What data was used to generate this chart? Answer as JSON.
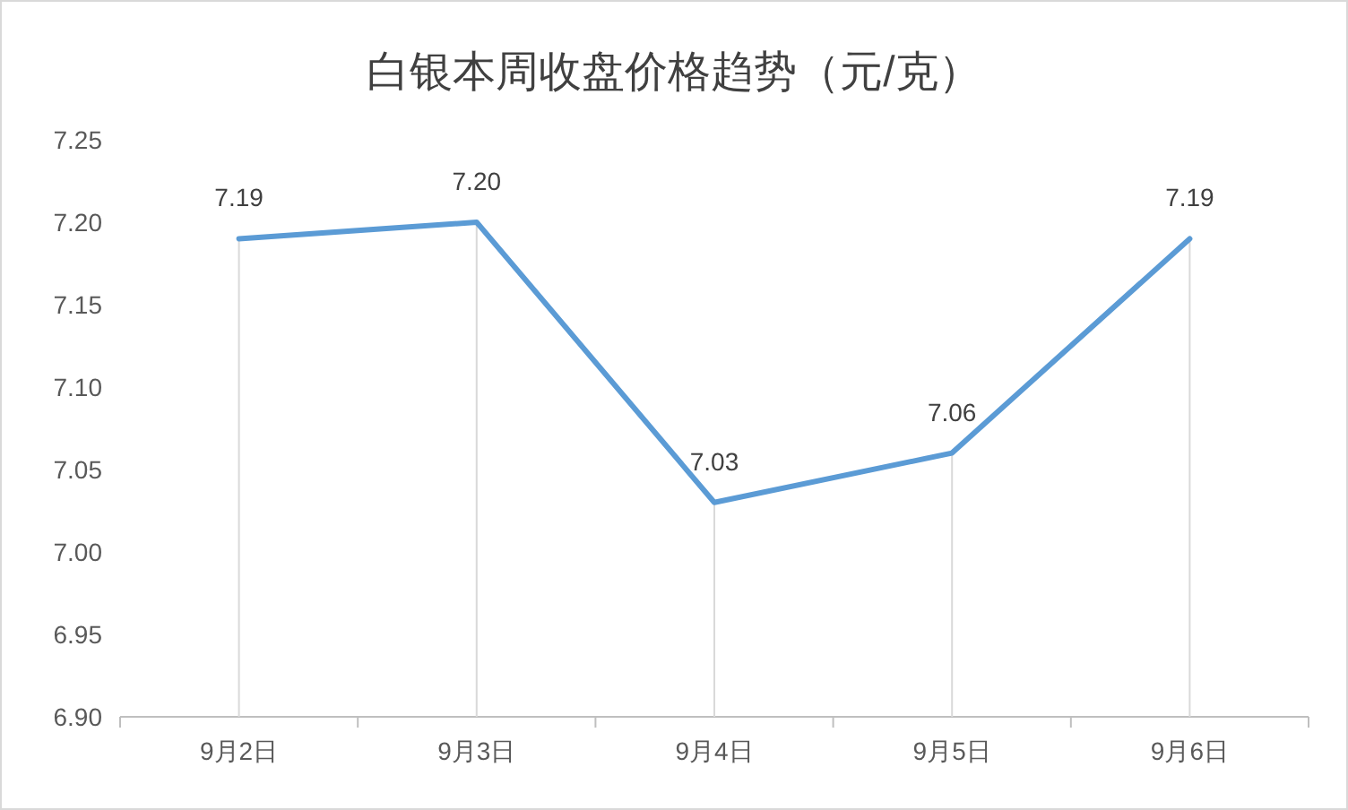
{
  "chart_data": {
    "type": "line",
    "title": "白银本周收盘价格趋势（元/克）",
    "categories": [
      "9月2日",
      "9月3日",
      "9月4日",
      "9月5日",
      "9月6日"
    ],
    "series": [
      {
        "color": "#5b9bd5",
        "values": [
          7.19,
          7.2,
          7.03,
          7.06,
          7.19
        ],
        "value_labels": [
          "7.19",
          "7.20",
          "7.03",
          "7.06",
          "7.19"
        ]
      }
    ],
    "ylim": [
      6.9,
      7.25
    ],
    "yticks": [
      {
        "value": 6.9,
        "label": "6.90"
      },
      {
        "value": 6.95,
        "label": "6.95"
      },
      {
        "value": 7.0,
        "label": "7.00"
      },
      {
        "value": 7.05,
        "label": "7.05"
      },
      {
        "value": 7.1,
        "label": "7.10"
      },
      {
        "value": 7.15,
        "label": "7.15"
      },
      {
        "value": 7.2,
        "label": "7.20"
      },
      {
        "value": 7.25,
        "label": "7.25"
      }
    ],
    "grid": "x",
    "marker": "none",
    "line_style": "solid"
  }
}
